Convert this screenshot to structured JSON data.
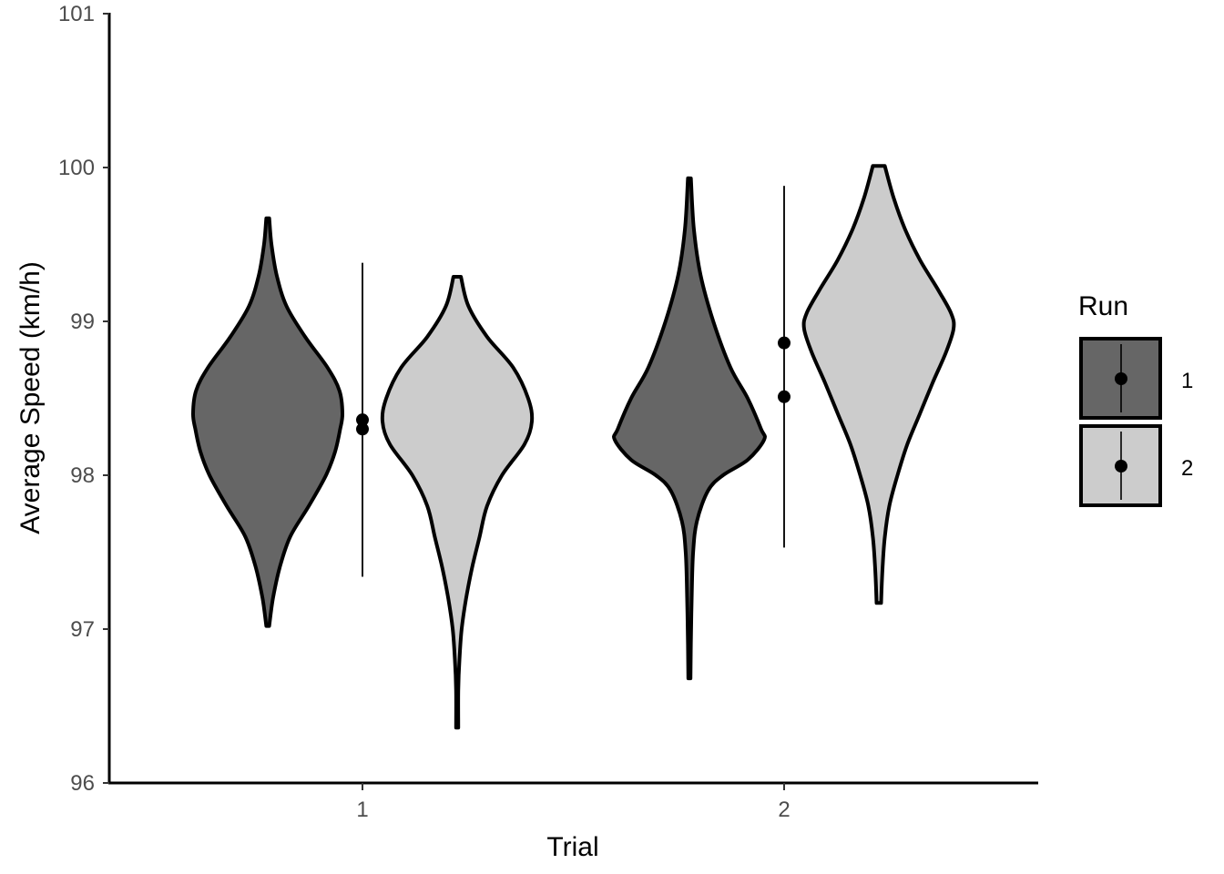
{
  "chart_data": {
    "type": "violin",
    "xlabel": "Trial",
    "ylabel": "Average Speed (km/h)",
    "categories": [
      "1",
      "2"
    ],
    "ylim": [
      96,
      101
    ],
    "yticks": [
      "96",
      "97",
      "98",
      "99",
      "100",
      "101"
    ],
    "grid": false,
    "legend": {
      "title": "Run",
      "position": "right",
      "entries": [
        "1",
        "2"
      ]
    },
    "series": [
      {
        "name": "1",
        "color": "#666666",
        "violins": [
          {
            "trial": "1",
            "min": 97.02,
            "max": 99.67,
            "profile": [
              [
                99.67,
                0.02
              ],
              [
                99.5,
                0.05
              ],
              [
                99.3,
                0.12
              ],
              [
                99.1,
                0.25
              ],
              [
                98.9,
                0.5
              ],
              [
                98.7,
                0.8
              ],
              [
                98.55,
                0.96
              ],
              [
                98.4,
                1.0
              ],
              [
                98.3,
                0.97
              ],
              [
                98.15,
                0.9
              ],
              [
                98.0,
                0.78
              ],
              [
                97.8,
                0.55
              ],
              [
                97.6,
                0.3
              ],
              [
                97.4,
                0.16
              ],
              [
                97.2,
                0.07
              ],
              [
                97.02,
                0.02
              ]
            ]
          },
          {
            "trial": "2",
            "min": 96.68,
            "max": 99.93,
            "profile": [
              [
                99.93,
                0.02
              ],
              [
                99.6,
                0.06
              ],
              [
                99.3,
                0.15
              ],
              [
                99.0,
                0.32
              ],
              [
                98.7,
                0.55
              ],
              [
                98.5,
                0.78
              ],
              [
                98.3,
                0.96
              ],
              [
                98.23,
                1.0
              ],
              [
                98.1,
                0.78
              ],
              [
                98.0,
                0.45
              ],
              [
                97.9,
                0.25
              ],
              [
                97.7,
                0.1
              ],
              [
                97.5,
                0.05
              ],
              [
                97.2,
                0.03
              ],
              [
                96.9,
                0.02
              ],
              [
                96.68,
                0.015
              ]
            ]
          }
        ],
        "summary": [
          {
            "trial": "1",
            "mean": 98.3,
            "ymin": 97.34,
            "ymax": 99.38
          },
          {
            "trial": "2",
            "mean": 98.51,
            "ymin": 97.53,
            "ymax": 99.88
          }
        ]
      },
      {
        "name": "2",
        "color": "#cccccc",
        "violins": [
          {
            "trial": "1",
            "min": 96.36,
            "max": 99.29,
            "profile": [
              [
                99.29,
                0.05
              ],
              [
                99.1,
                0.15
              ],
              [
                98.9,
                0.4
              ],
              [
                98.7,
                0.75
              ],
              [
                98.5,
                0.95
              ],
              [
                98.35,
                1.0
              ],
              [
                98.2,
                0.9
              ],
              [
                98.0,
                0.6
              ],
              [
                97.8,
                0.4
              ],
              [
                97.6,
                0.3
              ],
              [
                97.4,
                0.2
              ],
              [
                97.2,
                0.12
              ],
              [
                97.0,
                0.06
              ],
              [
                96.8,
                0.03
              ],
              [
                96.6,
                0.015
              ],
              [
                96.36,
                0.015
              ]
            ]
          },
          {
            "trial": "2",
            "min": 97.17,
            "max": 100.01,
            "profile": [
              [
                100.01,
                0.08
              ],
              [
                99.8,
                0.2
              ],
              [
                99.6,
                0.35
              ],
              [
                99.4,
                0.55
              ],
              [
                99.2,
                0.8
              ],
              [
                99.05,
                0.97
              ],
              [
                98.95,
                1.0
              ],
              [
                98.8,
                0.9
              ],
              [
                98.6,
                0.72
              ],
              [
                98.4,
                0.55
              ],
              [
                98.2,
                0.38
              ],
              [
                98.0,
                0.25
              ],
              [
                97.8,
                0.14
              ],
              [
                97.6,
                0.08
              ],
              [
                97.4,
                0.05
              ],
              [
                97.17,
                0.03
              ]
            ]
          }
        ],
        "summary": [
          {
            "trial": "1",
            "mean": 98.36,
            "ymin": 97.34,
            "ymax": 99.38
          },
          {
            "trial": "2",
            "mean": 98.86,
            "ymin": 97.53,
            "ymax": 99.88
          }
        ]
      }
    ]
  }
}
